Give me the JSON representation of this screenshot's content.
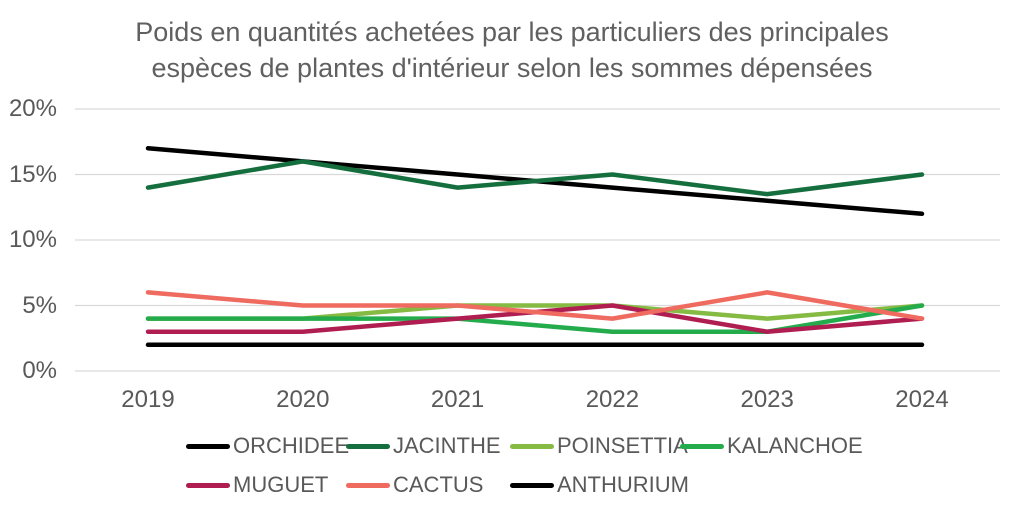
{
  "chart_data": {
    "type": "line",
    "title": "Poids en quantités achetées par les particuliers des principales espèces de plantes d'intérieur selon les sommes dépensées",
    "title_lines": [
      "Poids en quantités achetées par les particuliers des principales",
      "espèces de plantes d'intérieur selon les sommes dépensées"
    ],
    "categories": [
      "2019",
      "2020",
      "2021",
      "2022",
      "2023",
      "2024"
    ],
    "series": [
      {
        "name": "ORCHIDEE",
        "color": "#000000",
        "values": [
          17,
          16,
          15,
          14,
          13,
          12
        ]
      },
      {
        "name": "JACINTHE",
        "color": "#156e3d",
        "values": [
          14,
          16,
          14,
          15,
          13.5,
          15
        ]
      },
      {
        "name": "POINSETTIA",
        "color": "#85ba43",
        "values": [
          4,
          4,
          5,
          5,
          4,
          5
        ]
      },
      {
        "name": "KALANCHOE",
        "color": "#24ab4c",
        "values": [
          4,
          4,
          4,
          3,
          3,
          5
        ]
      },
      {
        "name": "MUGUET",
        "color": "#b01e51",
        "values": [
          3,
          3,
          4,
          5,
          3,
          4
        ]
      },
      {
        "name": "CACTUS",
        "color": "#ef6a5f",
        "values": [
          6,
          5,
          5,
          4,
          6,
          4
        ]
      },
      {
        "name": "ANTHURIUM",
        "color": "#000000",
        "values": [
          2,
          2,
          2,
          2,
          2,
          2
        ]
      }
    ],
    "yticks": [
      {
        "value": 0,
        "label": "0%"
      },
      {
        "value": 5,
        "label": "5%"
      },
      {
        "value": 10,
        "label": "10%"
      },
      {
        "value": 15,
        "label": "15%"
      },
      {
        "value": 20,
        "label": "20%"
      }
    ],
    "ylim": [
      0,
      20
    ],
    "xlabel": "",
    "ylabel": "",
    "grid": "horizontal",
    "legend_position": "bottom"
  },
  "colors": {
    "grid": "#d9d9d9",
    "axis_text": "#595959",
    "title_text": "#606060",
    "background": "#ffffff"
  }
}
